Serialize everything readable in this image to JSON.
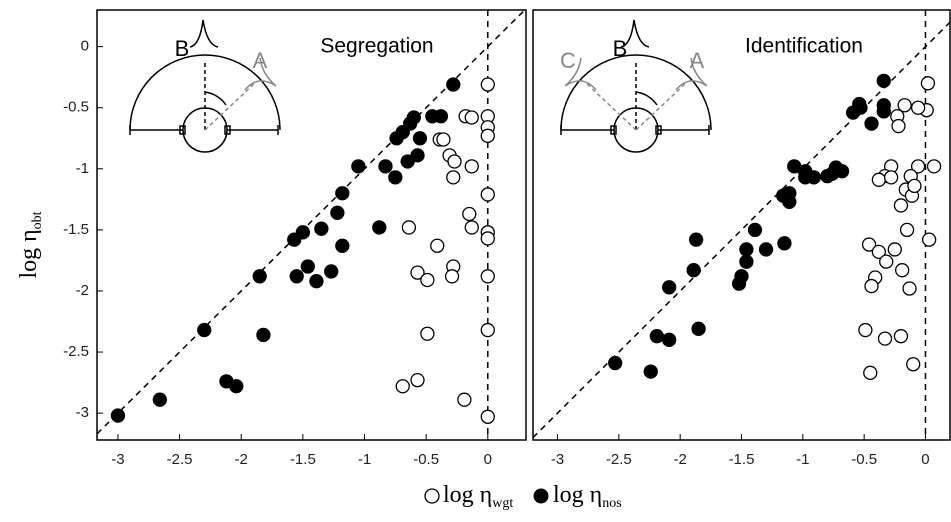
{
  "y_label": {
    "text": "log η",
    "sub": "obt"
  },
  "legend": [
    {
      "text": "log η",
      "sub": "wgt"
    },
    {
      "text": "log η",
      "sub": "nos"
    }
  ],
  "chart_data": [
    {
      "type": "scatter",
      "title": "Segregation",
      "inset_labels": [
        "B",
        "A"
      ],
      "xlim": [
        -3.17,
        0.31
      ],
      "ylim": [
        -3.22,
        0.3
      ],
      "xticks": [
        -3,
        -2.5,
        -2,
        -1.5,
        -1,
        -0.5,
        0
      ],
      "yticks": [
        0,
        -0.5,
        -1,
        -1.5,
        -2,
        -2.5,
        -3
      ],
      "series": [
        {
          "marker": "open",
          "color": "#000000",
          "x": [
            0,
            0,
            0,
            0,
            0,
            0,
            0,
            0,
            0,
            0,
            -0.18,
            -0.13,
            -0.39,
            -0.36,
            -0.31,
            -0.27,
            -0.28,
            -0.13,
            -0.15,
            -0.13,
            -0.64,
            -0.41,
            -0.28,
            -0.29,
            -0.57,
            -0.49,
            -0.49,
            -0.57,
            -0.69,
            -0.19
          ],
          "y": [
            -0.31,
            -0.57,
            -0.66,
            -0.73,
            -1.21,
            -1.52,
            -1.57,
            -1.88,
            -2.32,
            -3.03,
            -0.57,
            -0.58,
            -0.76,
            -0.76,
            -0.89,
            -0.94,
            -1.07,
            -0.98,
            -1.37,
            -1.48,
            -1.48,
            -1.63,
            -1.8,
            -1.88,
            -1.85,
            -1.91,
            -2.35,
            -2.73,
            -2.78,
            -2.89
          ]
        },
        {
          "marker": "filled",
          "color": "#000000",
          "x": [
            -3.0,
            -2.66,
            -2.12,
            -2.04,
            -2.3,
            -1.82,
            -1.85,
            -1.57,
            -1.5,
            -1.55,
            -1.46,
            -1.39,
            -1.35,
            -1.27,
            -1.22,
            -1.18,
            -1.18,
            -1.05,
            -0.88,
            -0.83,
            -0.75,
            -0.74,
            -0.69,
            -0.63,
            -0.6,
            -0.65,
            -0.57,
            -0.55,
            -0.45,
            -0.38,
            -0.28
          ],
          "y": [
            -3.02,
            -2.89,
            -2.74,
            -2.78,
            -2.32,
            -2.36,
            -1.88,
            -1.58,
            -1.52,
            -1.88,
            -1.8,
            -1.92,
            -1.49,
            -1.84,
            -1.36,
            -1.63,
            -1.2,
            -0.98,
            -1.48,
            -0.98,
            -1.07,
            -0.75,
            -0.7,
            -0.63,
            -0.58,
            -0.94,
            -0.89,
            -0.75,
            -0.57,
            -0.57,
            -0.31
          ]
        }
      ]
    },
    {
      "type": "scatter",
      "title": "Identification",
      "inset_labels": [
        "C",
        "B",
        "A"
      ],
      "xlim": [
        -3.2,
        0.2
      ],
      "ylim": [
        -3.22,
        0.3
      ],
      "xticks": [
        -3,
        -2.5,
        -2,
        -1.5,
        -1,
        -0.5,
        0
      ],
      "series": [
        {
          "marker": "open",
          "color": "#000000",
          "x": [
            0.02,
            0.01,
            -0.06,
            -0.17,
            -0.23,
            -0.22,
            0.07,
            -0.06,
            0.03,
            -0.28,
            -0.33,
            -0.38,
            -0.28,
            -0.12,
            -0.16,
            -0.11,
            -0.09,
            -0.2,
            -0.15,
            -0.46,
            -0.38,
            -0.32,
            -0.25,
            -0.41,
            -0.44,
            -0.19,
            -0.13,
            -0.49,
            -0.33,
            -0.2,
            -0.45,
            -0.1
          ],
          "y": [
            -0.3,
            -0.52,
            -0.5,
            -0.48,
            -0.57,
            -0.65,
            -0.98,
            -0.98,
            -1.58,
            -0.98,
            -1.06,
            -1.09,
            -1.07,
            -1.06,
            -1.17,
            -1.22,
            -1.14,
            -1.3,
            -1.5,
            -1.62,
            -1.68,
            -1.76,
            -1.66,
            -1.89,
            -1.96,
            -1.83,
            -1.98,
            -2.32,
            -2.39,
            -2.37,
            -2.67,
            -2.6
          ]
        },
        {
          "marker": "filled",
          "color": "#000000",
          "x": [
            -2.53,
            -2.24,
            -2.19,
            -2.09,
            -1.85,
            -2.09,
            -1.89,
            -1.87,
            -1.52,
            -1.5,
            -1.46,
            -1.46,
            -1.39,
            -1.3,
            -1.15,
            -1.11,
            -1.11,
            -1.16,
            -1.07,
            -0.98,
            -0.98,
            -0.91,
            -0.76,
            -0.73,
            -0.8,
            -0.68,
            -0.59,
            -0.54,
            -0.53,
            -0.44,
            -0.34,
            -0.34,
            -0.34
          ],
          "y": [
            -2.59,
            -2.66,
            -2.37,
            -2.4,
            -2.31,
            -1.97,
            -1.83,
            -1.58,
            -1.94,
            -1.88,
            -1.66,
            -1.76,
            -1.5,
            -1.66,
            -1.61,
            -1.27,
            -1.2,
            -1.22,
            -0.98,
            -1.07,
            -1.02,
            -1.07,
            -1.04,
            -0.99,
            -1.06,
            -1.02,
            -0.54,
            -0.47,
            -0.5,
            -0.63,
            -0.48,
            -0.53,
            -0.28
          ]
        }
      ]
    }
  ]
}
